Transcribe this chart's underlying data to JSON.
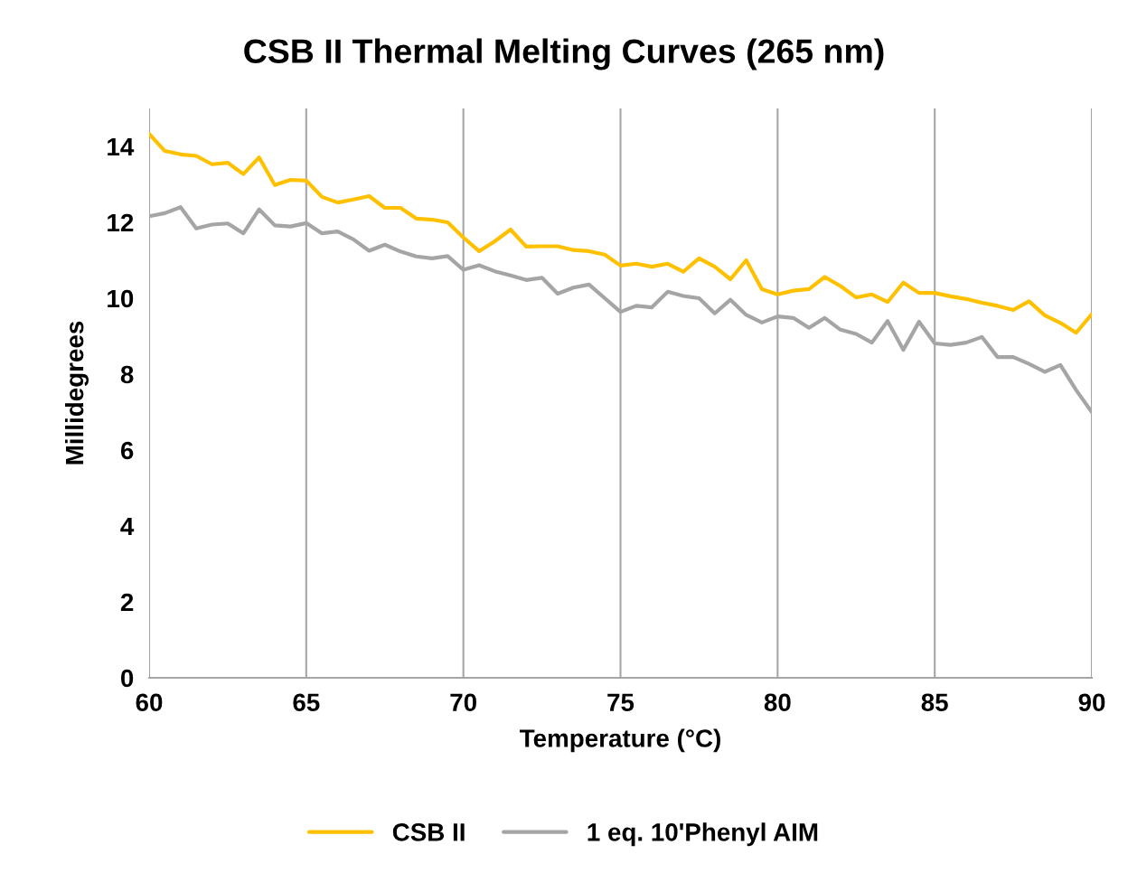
{
  "chart_data": {
    "type": "line",
    "title": "CSB II Thermal Melting Curves (265 nm)",
    "xlabel": "Temperature (°C)",
    "ylabel": "Millidegrees",
    "x": [
      60,
      60.5,
      61,
      61.5,
      62,
      62.5,
      63,
      63.5,
      64,
      64.5,
      65,
      65.5,
      66,
      66.5,
      67,
      67.5,
      68,
      68.5,
      69,
      69.5,
      70,
      70.5,
      71,
      71.5,
      72,
      72.5,
      73,
      73.5,
      74,
      74.5,
      75,
      75.5,
      76,
      76.5,
      77,
      77.5,
      78,
      78.5,
      79,
      79.5,
      80,
      80.5,
      81,
      81.5,
      82,
      82.5,
      83,
      83.5,
      84,
      84.5,
      85,
      85.5,
      86,
      86.5,
      87,
      87.5,
      88,
      88.5,
      89,
      89.5,
      90
    ],
    "series": [
      {
        "name": "CSB II",
        "color": "#ffc000",
        "values": [
          14.33,
          13.88,
          13.79,
          13.75,
          13.53,
          13.57,
          13.27,
          13.71,
          12.98,
          13.12,
          13.1,
          12.67,
          12.52,
          12.6,
          12.69,
          12.38,
          12.38,
          12.1,
          12.07,
          12.0,
          11.6,
          11.24,
          11.5,
          11.81,
          11.36,
          11.37,
          11.37,
          11.27,
          11.24,
          11.15,
          10.86,
          10.91,
          10.83,
          10.91,
          10.7,
          11.05,
          10.83,
          10.5,
          11.0,
          10.24,
          10.1,
          10.2,
          10.24,
          10.56,
          10.32,
          10.02,
          10.1,
          9.9,
          10.41,
          10.14,
          10.14,
          10.05,
          9.98,
          9.88,
          9.8,
          9.69,
          9.92,
          9.55,
          9.35,
          9.09,
          9.58
        ]
      },
      {
        "name": "1 eq. 10'Phenyl AIM",
        "color": "#a5a5a5",
        "values": [
          12.16,
          12.24,
          12.4,
          11.84,
          11.94,
          11.97,
          11.71,
          12.34,
          11.92,
          11.89,
          11.98,
          11.71,
          11.76,
          11.55,
          11.25,
          11.41,
          11.23,
          11.1,
          11.05,
          11.11,
          10.75,
          10.87,
          10.71,
          10.6,
          10.48,
          10.54,
          10.12,
          10.28,
          10.36,
          10.0,
          9.64,
          9.8,
          9.76,
          10.17,
          10.06,
          10.0,
          9.6,
          9.96,
          9.56,
          9.36,
          9.52,
          9.48,
          9.22,
          9.48,
          9.17,
          9.06,
          8.83,
          9.4,
          8.64,
          9.38,
          8.81,
          8.77,
          8.83,
          8.98,
          8.45,
          8.45,
          8.27,
          8.06,
          8.24,
          7.58,
          7.0
        ]
      }
    ],
    "xlim": [
      60,
      90
    ],
    "xticks": [
      60,
      65,
      70,
      75,
      80,
      85,
      90
    ],
    "ylim": [
      0,
      15
    ],
    "yticks": [
      0,
      2,
      4,
      6,
      8,
      10,
      12,
      14
    ],
    "grid": "x",
    "legend": "bottom",
    "marker": "none",
    "line_style": "solid"
  }
}
